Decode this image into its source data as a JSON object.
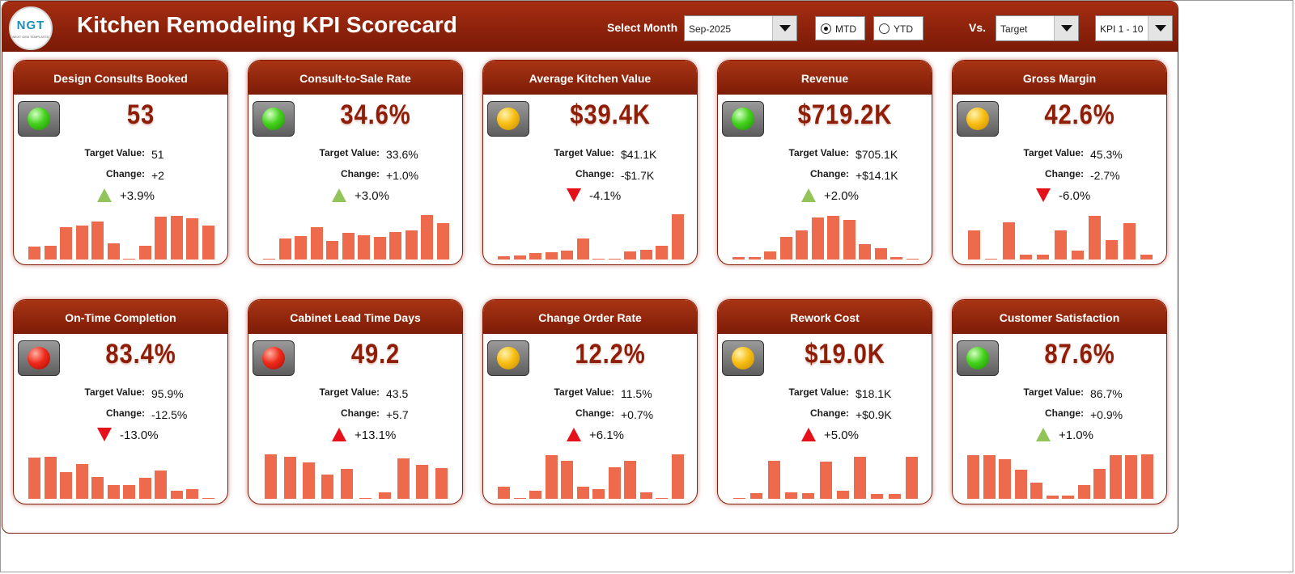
{
  "header": {
    "logo_text": "NGT",
    "logo_subtext": "NEXT GEN TEMPLATES",
    "title": "Kitchen Remodeling KPI Scorecard",
    "select_month_label": "Select Month",
    "month_value": "Sep-2025",
    "mtd_label": "MTD",
    "ytd_label": "YTD",
    "mtd_selected": true,
    "vs_label": "Vs.",
    "vs_value": "Target",
    "kpi_range_value": "KPI 1 - 10"
  },
  "colors": {
    "header_dark": "#7a1a07",
    "header_light": "#a52d12",
    "value_text": "#8f1e08",
    "bar": "#ee6a4c",
    "up_good": "#92c45a",
    "bad": "#e5101a"
  },
  "target_label": "Target Value:",
  "change_label": "Change:",
  "cards": [
    {
      "title": "Design Consults Booked",
      "status": "green",
      "value": "53",
      "target": "51",
      "change": "+2",
      "direction": "up-green",
      "percent": "+3.9%",
      "bars": [
        0.25,
        0.27,
        0.62,
        0.65,
        0.73,
        0.31,
        0.02,
        0.26,
        0.83,
        0.85,
        0.79,
        0.65
      ]
    },
    {
      "title": "Consult-to-Sale Rate",
      "status": "green",
      "value": "34.6%",
      "target": "33.6%",
      "change": "+1.0%",
      "direction": "up-green",
      "percent": "+3.0%",
      "bars": [
        0.02,
        0.4,
        0.46,
        0.62,
        0.36,
        0.52,
        0.47,
        0.43,
        0.53,
        0.56,
        0.86,
        0.7
      ]
    },
    {
      "title": "Average Kitchen Value",
      "status": "yellow",
      "value": "$39.4K",
      "target": "$41.1K",
      "change": "-$1.7K",
      "direction": "down-red",
      "percent": "-4.1%",
      "bars": [
        0.06,
        0.08,
        0.12,
        0.14,
        0.17,
        0.41,
        0.02,
        0.02,
        0.16,
        0.19,
        0.27,
        0.88
      ]
    },
    {
      "title": "Revenue",
      "status": "green",
      "value": "$719.2K",
      "target": "$705.1K",
      "change": "+$14.1K",
      "direction": "up-green",
      "percent": "+2.0%",
      "bars": [
        0.04,
        0.04,
        0.16,
        0.43,
        0.57,
        0.82,
        0.85,
        0.77,
        0.3,
        0.22,
        0.04,
        0.02
      ]
    },
    {
      "title": "Gross Margin",
      "status": "yellow",
      "value": "42.6%",
      "target": "45.3%",
      "change": "-2.7%",
      "direction": "down-red",
      "percent": "-6.0%",
      "bars": [
        0.56,
        0.02,
        0.72,
        0.1,
        0.1,
        0.56,
        0.17,
        0.84,
        0.37,
        0.7,
        0.1
      ]
    },
    {
      "title": "On-Time Completion",
      "status": "red",
      "value": "83.4%",
      "target": "95.9%",
      "change": "-12.5%",
      "direction": "down-red",
      "percent": "-13.0%",
      "bars": [
        0.79,
        0.81,
        0.52,
        0.67,
        0.42,
        0.27,
        0.26,
        0.4,
        0.55,
        0.15,
        0.19,
        0.02
      ]
    },
    {
      "title": "Cabinet Lead Time Days",
      "status": "red",
      "value": "49.2",
      "target": "43.5",
      "change": "+5.7",
      "direction": "up-red",
      "percent": "+13.1%",
      "bars": [
        0.86,
        0.82,
        0.7,
        0.47,
        0.58,
        0.02,
        0.13,
        0.78,
        0.66,
        0.6
      ]
    },
    {
      "title": "Change Order Rate",
      "status": "yellow",
      "value": "12.2%",
      "target": "11.5%",
      "change": "+0.7%",
      "direction": "up-red",
      "percent": "+6.1%",
      "bars": [
        0.24,
        0.02,
        0.15,
        0.85,
        0.73,
        0.24,
        0.19,
        0.61,
        0.73,
        0.13,
        0.02,
        0.86
      ]
    },
    {
      "title": "Rework Cost",
      "status": "yellow",
      "value": "$19.0K",
      "target": "$18.1K",
      "change": "+$0.9K",
      "direction": "up-red",
      "percent": "+5.0%",
      "bars": [
        0.02,
        0.11,
        0.73,
        0.13,
        0.11,
        0.72,
        0.15,
        0.82,
        0.09,
        0.09,
        0.81
      ]
    },
    {
      "title": "Customer Satisfaction",
      "status": "green",
      "value": "87.6%",
      "target": "86.7%",
      "change": "+0.9%",
      "direction": "up-green",
      "percent": "+1.0%",
      "bars": [
        0.85,
        0.85,
        0.76,
        0.56,
        0.32,
        0.06,
        0.06,
        0.27,
        0.58,
        0.85,
        0.85,
        0.86
      ]
    }
  ]
}
